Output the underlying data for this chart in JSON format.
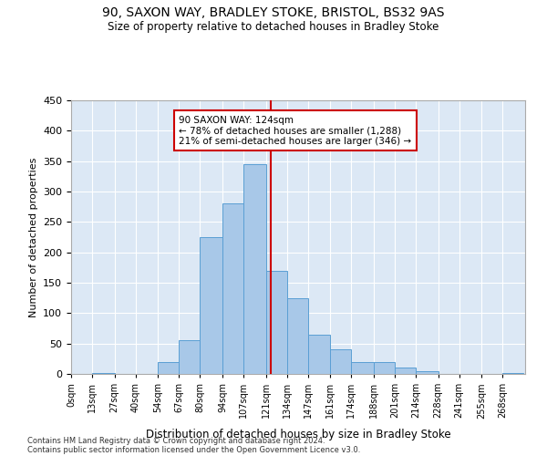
{
  "title1": "90, SAXON WAY, BRADLEY STOKE, BRISTOL, BS32 9AS",
  "title2": "Size of property relative to detached houses in Bradley Stoke",
  "xlabel": "Distribution of detached houses by size in Bradley Stoke",
  "ylabel": "Number of detached properties",
  "footnote1": "Contains HM Land Registry data © Crown copyright and database right 2024.",
  "footnote2": "Contains public sector information licensed under the Open Government Licence v3.0.",
  "annotation_title": "90 SAXON WAY: 124sqm",
  "annotation_line1": "← 78% of detached houses are smaller (1,288)",
  "annotation_line2": "21% of semi-detached houses are larger (346) →",
  "property_size": 124,
  "bar_labels": [
    "0sqm",
    "13sqm",
    "27sqm",
    "40sqm",
    "54sqm",
    "67sqm",
    "80sqm",
    "94sqm",
    "107sqm",
    "121sqm",
    "134sqm",
    "147sqm",
    "161sqm",
    "174sqm",
    "188sqm",
    "201sqm",
    "214sqm",
    "228sqm",
    "241sqm",
    "255sqm",
    "268sqm"
  ],
  "bar_left_edges": [
    0,
    13,
    27,
    40,
    54,
    67,
    80,
    94,
    107,
    121,
    134,
    147,
    161,
    174,
    188,
    201,
    214,
    228,
    241,
    255,
    268
  ],
  "bar_heights": [
    0,
    2,
    0,
    0,
    20,
    55,
    225,
    280,
    345,
    170,
    125,
    65,
    40,
    20,
    20,
    10,
    5,
    0,
    0,
    0,
    1
  ],
  "bar_color": "#a8c8e8",
  "bar_edge_color": "#5a9fd4",
  "vline_x": 124,
  "vline_color": "#cc0000",
  "bg_color": "#dce8f5",
  "ylim": [
    0,
    450
  ],
  "yticks": [
    0,
    50,
    100,
    150,
    200,
    250,
    300,
    350,
    400,
    450
  ],
  "xlim_max": 282
}
